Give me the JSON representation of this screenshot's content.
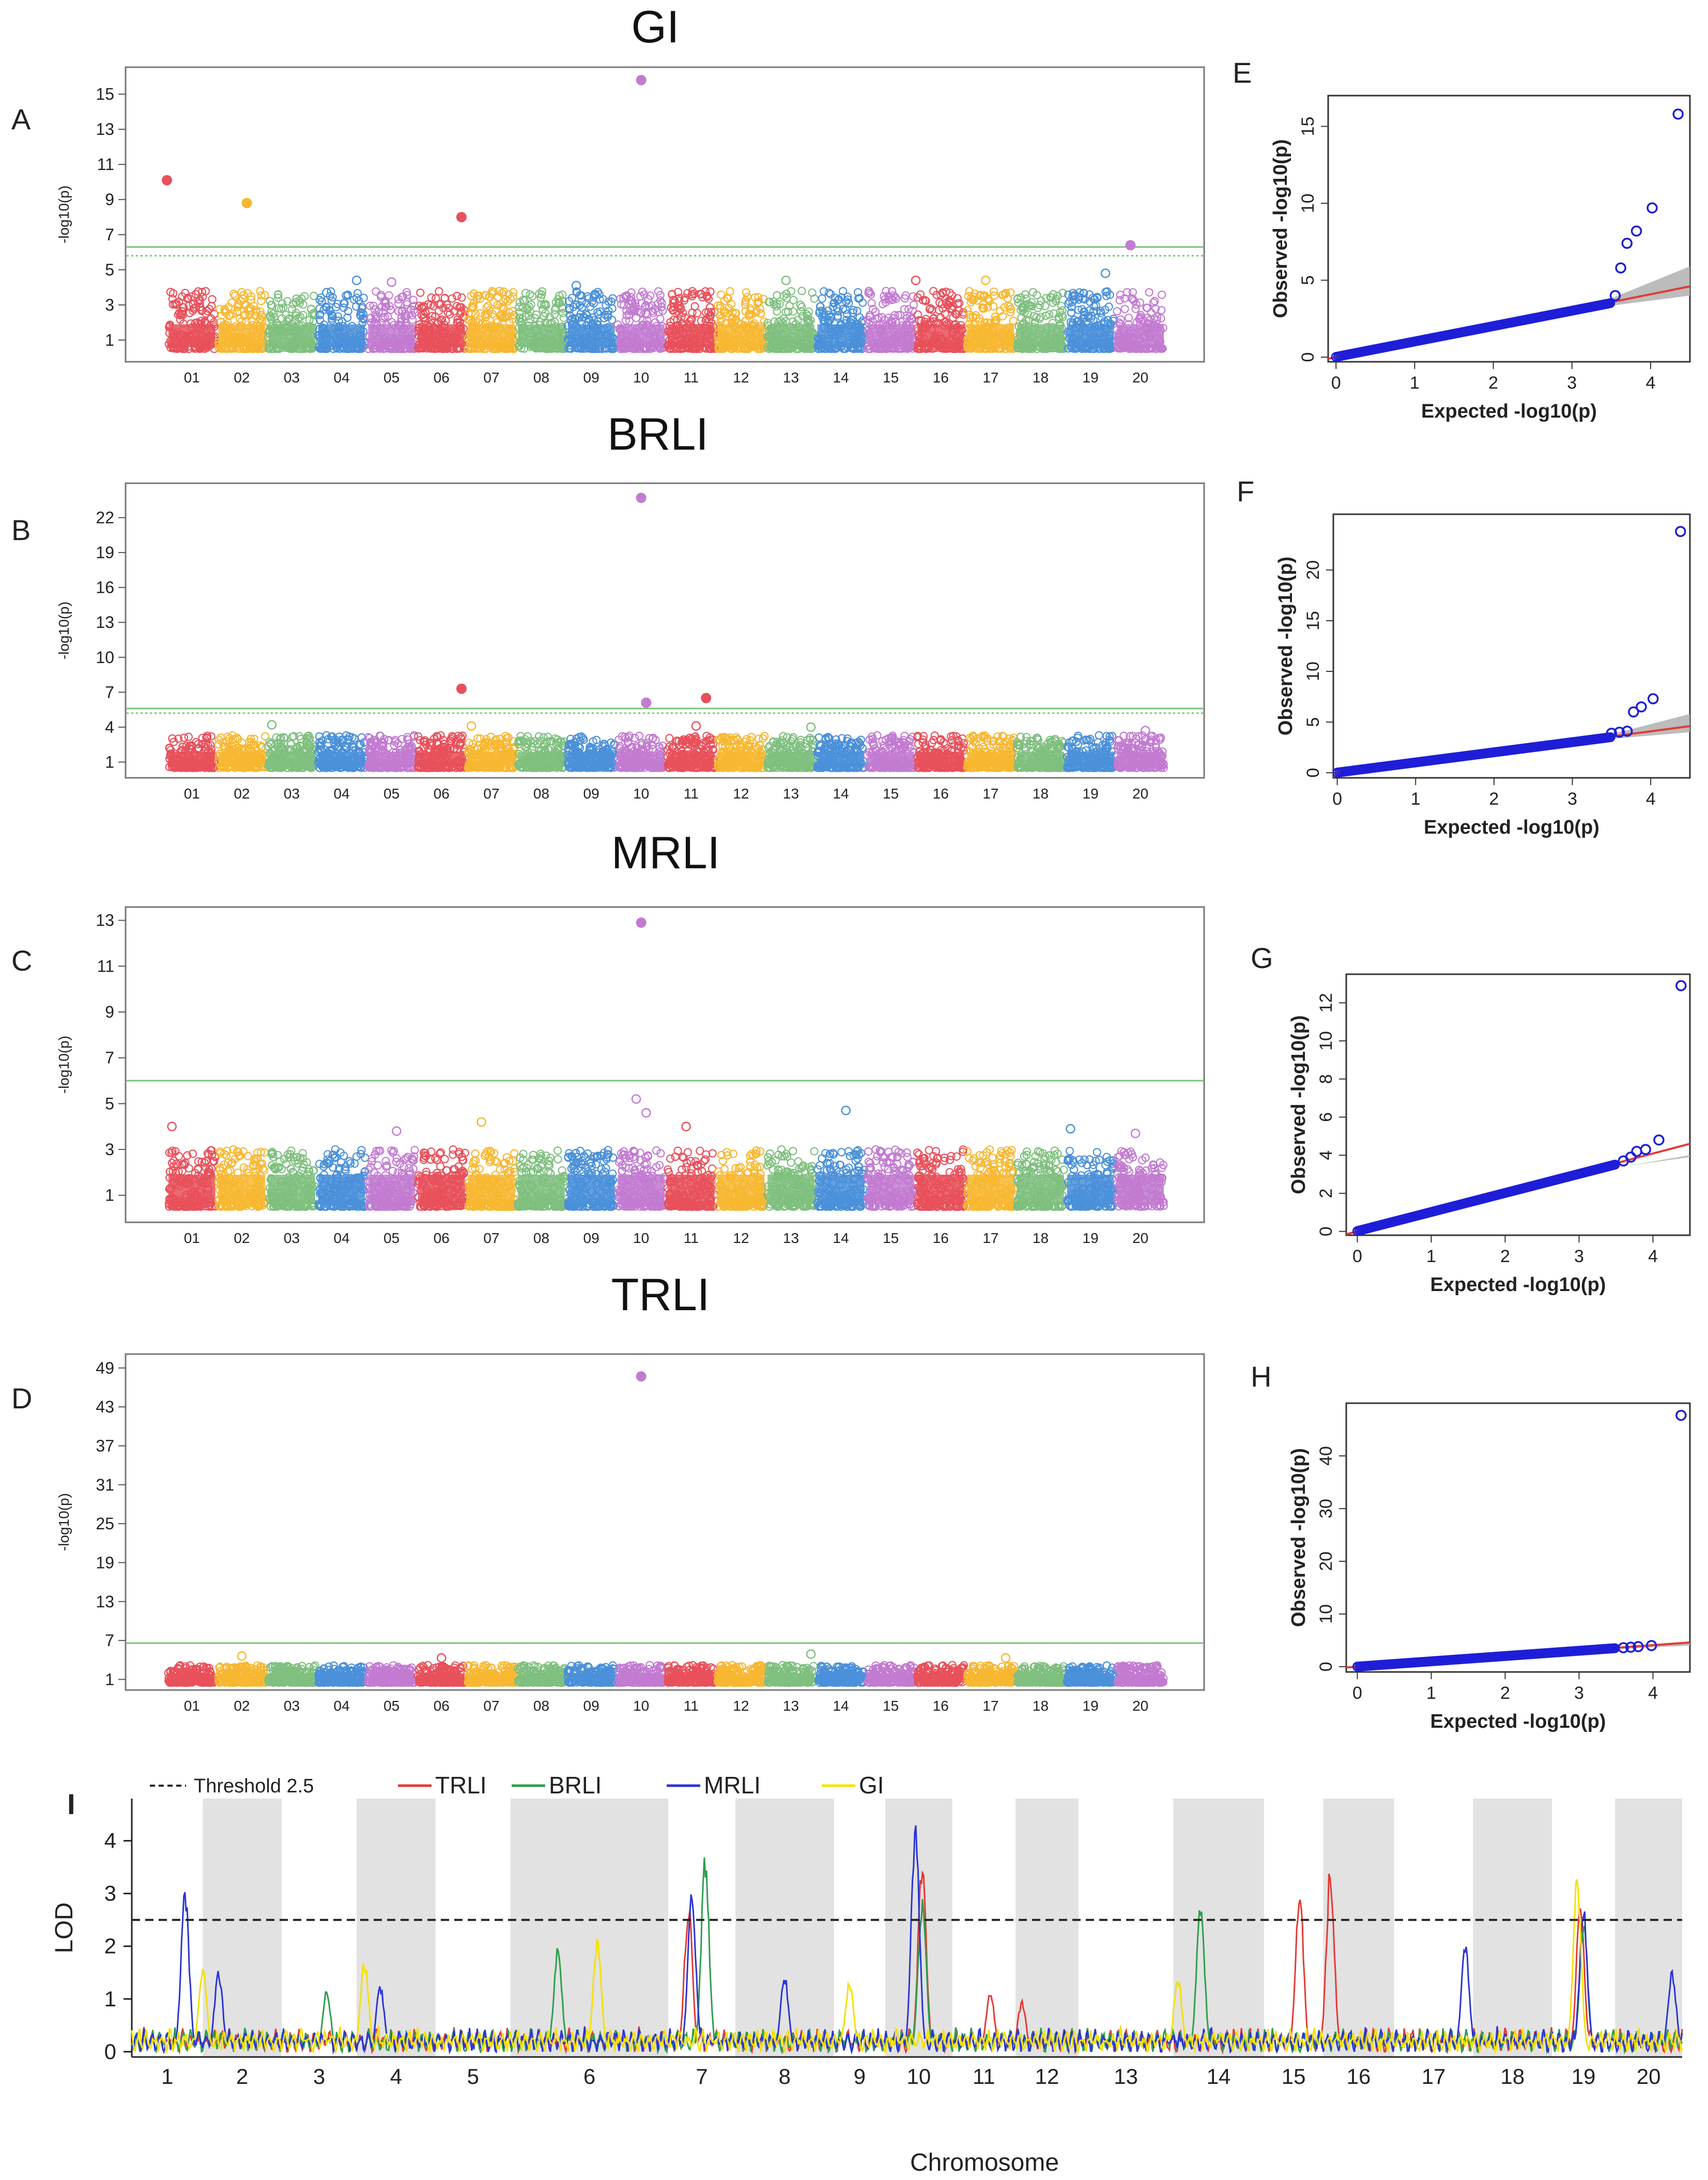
{
  "figure": {
    "chromosome_ticks": [
      "01",
      "02",
      "03",
      "04",
      "05",
      "06",
      "07",
      "08",
      "09",
      "10",
      "11",
      "12",
      "13",
      "14",
      "15",
      "16",
      "17",
      "18",
      "19",
      "20"
    ],
    "chromosome_colors": [
      "#e8505b",
      "#f7b731",
      "#7fbf7f",
      "#4a90d9",
      "#c27bd1",
      "#e8505b",
      "#f7b731",
      "#7fbf7f",
      "#4a90d9",
      "#c27bd1",
      "#e8505b",
      "#f7b731",
      "#7fbf7f",
      "#4a90d9",
      "#c27bd1",
      "#e8505b",
      "#f7b731",
      "#7fbf7f",
      "#4a90d9",
      "#c27bd1"
    ]
  },
  "chart_data": [
    {
      "id": "A",
      "type": "scatter",
      "kind": "manhattan",
      "letter": "A",
      "title": "GI",
      "ylabel": "-log10(p)",
      "yticks": [
        1,
        3,
        5,
        7,
        9,
        11,
        13,
        15
      ],
      "ylim": [
        0,
        16.3
      ],
      "threshold_solid": 6.3,
      "threshold_dotted": 5.8,
      "baseline_max": 3.8,
      "points": [
        {
          "chr": 1,
          "pos": 0.0,
          "y": 10.1
        },
        {
          "chr": 2,
          "pos": 0.6,
          "y": 8.8
        },
        {
          "chr": 6,
          "pos": 0.9,
          "y": 8.0
        },
        {
          "chr": 10,
          "pos": 0.5,
          "y": 15.8
        },
        {
          "chr": 20,
          "pos": 0.3,
          "y": 6.4
        }
      ],
      "secondary": [
        {
          "chr": 4,
          "pos": 0.2,
          "y": 3.7
        },
        {
          "chr": 4,
          "pos": 0.8,
          "y": 4.4
        },
        {
          "chr": 5,
          "pos": 0.5,
          "y": 4.3
        },
        {
          "chr": 9,
          "pos": 0.2,
          "y": 4.1
        },
        {
          "chr": 13,
          "pos": 0.4,
          "y": 4.4
        },
        {
          "chr": 16,
          "pos": 0.0,
          "y": 4.4
        },
        {
          "chr": 17,
          "pos": 0.4,
          "y": 4.4
        },
        {
          "chr": 19,
          "pos": 0.8,
          "y": 4.8
        }
      ]
    },
    {
      "id": "B",
      "type": "scatter",
      "kind": "manhattan",
      "letter": "B",
      "title": "BRLI",
      "ylabel": "-log10(p)",
      "yticks": [
        1,
        4,
        7,
        10,
        13,
        16,
        19,
        22
      ],
      "ylim": [
        0,
        24.6
      ],
      "threshold_solid": 5.6,
      "threshold_dotted": 5.2,
      "baseline_max": 3.3,
      "points": [
        {
          "chr": 6,
          "pos": 0.9,
          "y": 7.3
        },
        {
          "chr": 10,
          "pos": 0.5,
          "y": 23.7
        },
        {
          "chr": 10,
          "pos": 0.6,
          "y": 6.1
        },
        {
          "chr": 11,
          "pos": 0.8,
          "y": 6.5
        }
      ],
      "secondary": [
        {
          "chr": 3,
          "pos": 0.1,
          "y": 4.2
        },
        {
          "chr": 7,
          "pos": 0.1,
          "y": 4.1
        },
        {
          "chr": 11,
          "pos": 0.6,
          "y": 4.1
        },
        {
          "chr": 13,
          "pos": 0.9,
          "y": 4.0
        },
        {
          "chr": 20,
          "pos": 0.6,
          "y": 3.7
        }
      ]
    },
    {
      "id": "C",
      "type": "scatter",
      "kind": "manhattan",
      "letter": "C",
      "title": "MRLI",
      "ylabel": "-log10(p)",
      "yticks": [
        1,
        3,
        5,
        7,
        9,
        11,
        13
      ],
      "ylim": [
        0,
        13.4
      ],
      "threshold_solid": 6.0,
      "threshold_dotted": null,
      "baseline_max": 3.0,
      "points": [
        {
          "chr": 10,
          "pos": 0.5,
          "y": 12.9
        }
      ],
      "secondary": [
        {
          "chr": 1,
          "pos": 0.1,
          "y": 4.0
        },
        {
          "chr": 7,
          "pos": 0.3,
          "y": 4.2
        },
        {
          "chr": 10,
          "pos": 0.4,
          "y": 5.2
        },
        {
          "chr": 10,
          "pos": 0.6,
          "y": 4.6
        },
        {
          "chr": 11,
          "pos": 0.4,
          "y": 4.0
        },
        {
          "chr": 14,
          "pos": 0.6,
          "y": 4.7
        },
        {
          "chr": 5,
          "pos": 0.6,
          "y": 3.8
        },
        {
          "chr": 19,
          "pos": 0.1,
          "y": 3.9
        },
        {
          "chr": 20,
          "pos": 0.4,
          "y": 3.7
        }
      ]
    },
    {
      "id": "D",
      "type": "scatter",
      "kind": "manhattan",
      "letter": "D",
      "title": "TRLI",
      "ylabel": "-log10(p)",
      "yticks": [
        1,
        7,
        13,
        19,
        25,
        31,
        37,
        43,
        49
      ],
      "ylim": [
        0,
        50.5
      ],
      "threshold_solid": 6.6,
      "threshold_dotted": null,
      "baseline_max": 3.2,
      "points": [
        {
          "chr": 10,
          "pos": 0.5,
          "y": 47.7
        }
      ],
      "secondary": [
        {
          "chr": 2,
          "pos": 0.5,
          "y": 4.6
        },
        {
          "chr": 6,
          "pos": 0.5,
          "y": 4.3
        },
        {
          "chr": 13,
          "pos": 0.9,
          "y": 4.9
        },
        {
          "chr": 17,
          "pos": 0.8,
          "y": 4.3
        }
      ]
    },
    {
      "id": "E",
      "type": "scatter",
      "kind": "qq",
      "letter": "E",
      "xlabel": "Expected  -log10(p)",
      "ylabel": "Observed  -log10(p)",
      "xticks": [
        0,
        1,
        2,
        3,
        4
      ],
      "yticks": [
        0,
        5,
        10,
        15
      ],
      "xlim": [
        -0.1,
        4.5
      ],
      "ylim": [
        -0.3,
        17
      ],
      "tail": [
        [
          3.55,
          4.0
        ],
        [
          3.62,
          5.8
        ],
        [
          3.7,
          7.4
        ],
        [
          3.82,
          8.2
        ],
        [
          4.02,
          9.7
        ],
        [
          4.35,
          15.8
        ]
      ],
      "line_end": [
        4.5,
        4.6
      ],
      "band_end": 5.9
    },
    {
      "id": "F",
      "type": "scatter",
      "kind": "qq",
      "letter": "F",
      "xlabel": "Expected  -log10(p)",
      "ylabel": "Observed  -log10(p)",
      "xticks": [
        0,
        1,
        2,
        3,
        4
      ],
      "yticks": [
        0,
        5,
        10,
        15,
        20
      ],
      "xlim": [
        -0.05,
        4.5
      ],
      "ylim": [
        -0.5,
        25.5
      ],
      "tail": [
        [
          3.5,
          3.9
        ],
        [
          3.6,
          4.0
        ],
        [
          3.7,
          4.1
        ],
        [
          3.78,
          6.0
        ],
        [
          3.88,
          6.5
        ],
        [
          4.03,
          7.3
        ],
        [
          4.38,
          23.8
        ]
      ],
      "line_end": [
        4.5,
        4.6
      ],
      "band_end": 5.8
    },
    {
      "id": "G",
      "type": "scatter",
      "kind": "qq",
      "letter": "G",
      "xlabel": "Expected  -log10(p)",
      "ylabel": "Observed  -log10(p)",
      "xticks": [
        0,
        1,
        2,
        3,
        4
      ],
      "yticks": [
        0,
        2,
        4,
        6,
        8,
        10,
        12
      ],
      "xlim": [
        -0.15,
        4.5
      ],
      "ylim": [
        -0.2,
        13.5
      ],
      "tail": [
        [
          3.6,
          3.7
        ],
        [
          3.7,
          3.9
        ],
        [
          3.78,
          4.2
        ],
        [
          3.9,
          4.3
        ],
        [
          4.08,
          4.8
        ],
        [
          4.38,
          12.9
        ]
      ],
      "line_end": [
        4.5,
        4.6
      ],
      "band_end": 3.9
    },
    {
      "id": "H",
      "type": "scatter",
      "kind": "qq",
      "letter": "H",
      "xlabel": "Expected  -log10(p)",
      "ylabel": "Observed  -log10(p)",
      "xticks": [
        0,
        1,
        2,
        3,
        4
      ],
      "yticks": [
        0,
        10,
        20,
        30,
        40
      ],
      "xlim": [
        -0.15,
        4.5
      ],
      "ylim": [
        -1,
        50
      ],
      "tail": [
        [
          3.6,
          3.6
        ],
        [
          3.7,
          3.7
        ],
        [
          3.8,
          3.8
        ],
        [
          3.98,
          4.0
        ],
        [
          4.38,
          47.7
        ]
      ],
      "line_end": [
        4.5,
        4.6
      ],
      "band_end": 4.5
    },
    {
      "id": "I",
      "type": "line",
      "kind": "lod",
      "letter": "I",
      "xlabel": "Chromosome",
      "ylabel": "LOD",
      "categories": [
        "1",
        "2",
        "3",
        "4",
        "5",
        "6",
        "7",
        "8",
        "9",
        "10",
        "11",
        "12",
        "13",
        "14",
        "15",
        "16",
        "17",
        "18",
        "19",
        "20"
      ],
      "chrom_widths": [
        0.9,
        1.0,
        0.95,
        1.0,
        0.95,
        2.0,
        0.85,
        1.25,
        0.65,
        0.85,
        0.8,
        0.8,
        1.2,
        1.15,
        0.75,
        0.9,
        1.0,
        1.0,
        0.8,
        0.85
      ],
      "yticks": [
        0,
        1,
        2,
        3,
        4
      ],
      "ylim": [
        -0.1,
        4.8
      ],
      "threshold": 2.5,
      "threshold_label": "Threshold 2.5",
      "series": [
        {
          "name": "TRLI",
          "color": "#e53935",
          "peaks": [
            {
              "chr": 7,
              "pos": 0.3,
              "v": 2.9
            },
            {
              "chr": 10,
              "pos": 0.55,
              "v": 3.8
            },
            {
              "chr": 15,
              "pos": 0.6,
              "v": 3.2
            },
            {
              "chr": 16,
              "pos": 0.1,
              "v": 3.6
            },
            {
              "chr": 19,
              "pos": 0.45,
              "v": 2.9
            },
            {
              "chr": 11,
              "pos": 0.6,
              "v": 1.2
            },
            {
              "chr": 12,
              "pos": 0.1,
              "v": 1.0
            }
          ]
        },
        {
          "name": "BRLI",
          "color": "#2e9e4e",
          "peaks": [
            {
              "chr": 6,
              "pos": 0.3,
              "v": 2.1
            },
            {
              "chr": 7,
              "pos": 0.55,
              "v": 3.8
            },
            {
              "chr": 10,
              "pos": 0.55,
              "v": 3.0
            },
            {
              "chr": 14,
              "pos": 0.3,
              "v": 3.0
            },
            {
              "chr": 19,
              "pos": 0.5,
              "v": 2.5
            },
            {
              "chr": 3,
              "pos": 0.6,
              "v": 1.2
            }
          ]
        },
        {
          "name": "MRLI",
          "color": "#2a35d6",
          "peaks": [
            {
              "chr": 1,
              "pos": 0.75,
              "v": 3.2
            },
            {
              "chr": 2,
              "pos": 0.2,
              "v": 1.6
            },
            {
              "chr": 7,
              "pos": 0.35,
              "v": 3.1
            },
            {
              "chr": 10,
              "pos": 0.45,
              "v": 4.6
            },
            {
              "chr": 8,
              "pos": 0.5,
              "v": 1.5
            },
            {
              "chr": 17,
              "pos": 0.9,
              "v": 2.1
            },
            {
              "chr": 19,
              "pos": 0.5,
              "v": 2.8
            },
            {
              "chr": 20,
              "pos": 0.85,
              "v": 1.6
            },
            {
              "chr": 4,
              "pos": 0.3,
              "v": 1.3
            }
          ]
        },
        {
          "name": "GI",
          "color": "#f5e100",
          "peaks": [
            {
              "chr": 4,
              "pos": 0.1,
              "v": 1.8
            },
            {
              "chr": 6,
              "pos": 0.55,
              "v": 2.2
            },
            {
              "chr": 19,
              "pos": 0.4,
              "v": 3.4
            },
            {
              "chr": 9,
              "pos": 0.3,
              "v": 1.4
            },
            {
              "chr": 14,
              "pos": 0.05,
              "v": 1.5
            },
            {
              "chr": 2,
              "pos": 0.0,
              "v": 1.7
            }
          ]
        }
      ]
    }
  ]
}
